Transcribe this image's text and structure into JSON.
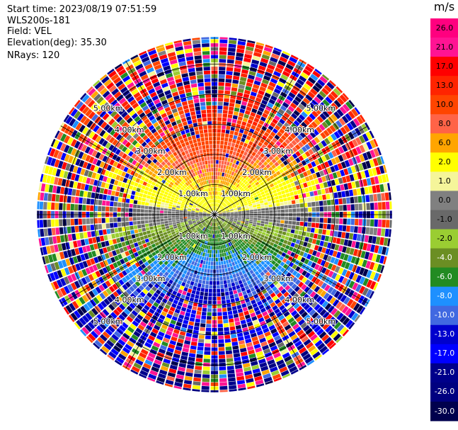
{
  "header": {
    "start_time": "Start time: 2023/08/19 07:51:59",
    "instrument": "WLS200s-181",
    "field": "Field: VEL",
    "elevation": "Elevation(deg): 35.30",
    "nrays": "NRays: 120"
  },
  "colorbar": {
    "unit": "m/s",
    "ticks": [
      "26.0",
      "21.0",
      "17.0",
      "13.0",
      "10.0",
      "8.0",
      "6.0",
      "2.0",
      "1.0",
      "0.0",
      "-1.0",
      "-2.0",
      "-4.0",
      "-6.0",
      "-8.0",
      "-10.0",
      "-13.0",
      "-17.0",
      "-21.0",
      "-26.0",
      "-30.0"
    ],
    "colors": [
      "#ff007f",
      "#ff1493",
      "#ff0000",
      "#ff2400",
      "#ff4500",
      "#ff6347",
      "#ffa500",
      "#ffff00",
      "#f5f59a",
      "#808080",
      "#696969",
      "#9acd32",
      "#6b8e23",
      "#228b22",
      "#1e90ff",
      "#4169e1",
      "#0000cd",
      "#0000ff",
      "#00008b",
      "#000080",
      "#00004d"
    ]
  },
  "chart_data": {
    "type": "heatmap",
    "subtype": "polar PPI scan",
    "field": "VEL",
    "unit": "m/s",
    "nrays": 120,
    "elevation_deg": 35.3,
    "range_rings_km": [
      1.0,
      2.0,
      3.0,
      4.0,
      5.0
    ],
    "ring_labels": [
      "1.00km",
      "2.00km",
      "3.00km",
      "4.00km",
      "5.00km"
    ],
    "max_range_km": 5.9,
    "color_range": [
      -30.0,
      26.0
    ],
    "pattern": "positive (red/orange/yellow) velocities toward north half, negative (green/blue) velocities toward south half, noisy speckle beyond ~3 km"
  }
}
